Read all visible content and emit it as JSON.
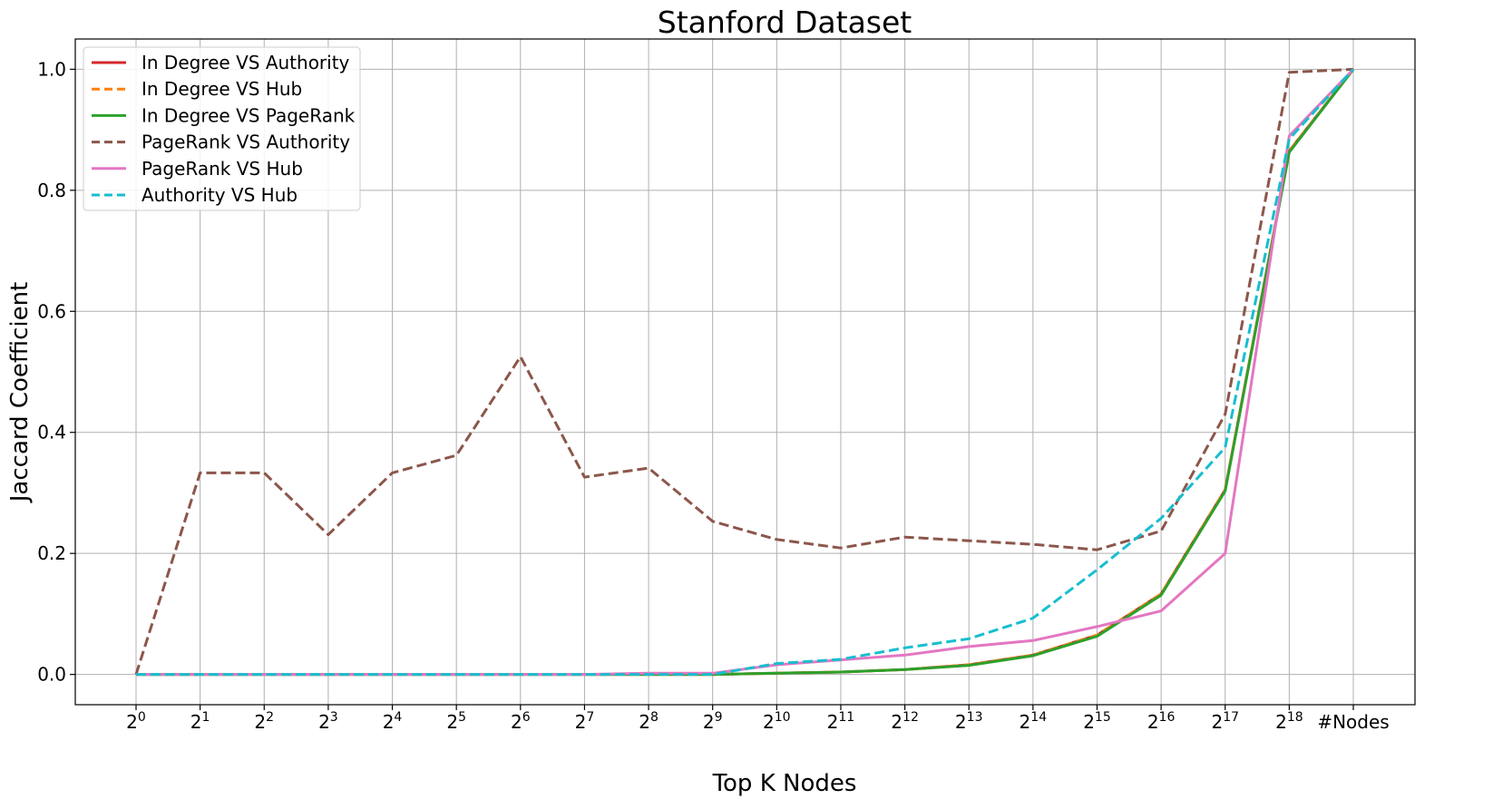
{
  "chart_data": {
    "type": "line",
    "title": "Stanford Dataset",
    "xlabel": "Top K Nodes",
    "ylabel": "Jaccard Coefficient",
    "x_tick_labels": [
      {
        "base": "2",
        "exp": "0"
      },
      {
        "base": "2",
        "exp": "1"
      },
      {
        "base": "2",
        "exp": "2"
      },
      {
        "base": "2",
        "exp": "3"
      },
      {
        "base": "2",
        "exp": "4"
      },
      {
        "base": "2",
        "exp": "5"
      },
      {
        "base": "2",
        "exp": "6"
      },
      {
        "base": "2",
        "exp": "7"
      },
      {
        "base": "2",
        "exp": "8"
      },
      {
        "base": "2",
        "exp": "9"
      },
      {
        "base": "2",
        "exp": "10"
      },
      {
        "base": "2",
        "exp": "11"
      },
      {
        "base": "2",
        "exp": "12"
      },
      {
        "base": "2",
        "exp": "13"
      },
      {
        "base": "2",
        "exp": "14"
      },
      {
        "base": "2",
        "exp": "15"
      },
      {
        "base": "2",
        "exp": "16"
      },
      {
        "base": "2",
        "exp": "17"
      },
      {
        "base": "2",
        "exp": "18"
      },
      {
        "base": "#Nodes",
        "exp": ""
      }
    ],
    "y_ticks": [
      0.0,
      0.2,
      0.4,
      0.6,
      0.8,
      1.0
    ],
    "y_tick_labels": [
      "0.0",
      "0.2",
      "0.4",
      "0.6",
      "0.8",
      "1.0"
    ],
    "ylim": [
      -0.05,
      1.05
    ],
    "grid": true,
    "legend_position": "top-left",
    "series": [
      {
        "name": "In Degree VS Authority",
        "color": "#d62728",
        "dashed": false,
        "values": [
          0,
          0,
          0,
          0,
          0,
          0,
          0,
          0,
          0,
          0,
          0.002,
          0.004,
          0.008,
          0.016,
          0.032,
          0.065,
          0.133,
          0.305,
          0.865,
          1.0
        ]
      },
      {
        "name": "In Degree VS Hub",
        "color": "#ff7f0e",
        "dashed": true,
        "values": [
          0,
          0,
          0,
          0,
          0,
          0,
          0,
          0,
          0,
          0,
          0.002,
          0.004,
          0.008,
          0.016,
          0.032,
          0.065,
          0.133,
          0.305,
          0.865,
          1.0
        ]
      },
      {
        "name": "In Degree VS PageRank",
        "color": "#2ca02c",
        "dashed": false,
        "values": [
          0,
          0,
          0,
          0,
          0,
          0,
          0,
          0,
          0,
          0,
          0.002,
          0.004,
          0.008,
          0.015,
          0.031,
          0.063,
          0.131,
          0.303,
          0.863,
          1.0
        ]
      },
      {
        "name": "PageRank VS Authority",
        "color": "#8c564b",
        "dashed": true,
        "values": [
          0,
          0.333,
          0.333,
          0.231,
          0.333,
          0.362,
          0.525,
          0.326,
          0.341,
          0.253,
          0.223,
          0.209,
          0.227,
          0.221,
          0.215,
          0.206,
          0.237,
          0.43,
          0.995,
          1.0
        ]
      },
      {
        "name": "PageRank VS Hub",
        "color": "#e377c2",
        "dashed": false,
        "values": [
          0,
          0,
          0,
          0,
          0,
          0,
          0,
          0,
          0.002,
          0.002,
          0.016,
          0.024,
          0.032,
          0.046,
          0.056,
          0.079,
          0.105,
          0.2,
          0.89,
          1.0
        ]
      },
      {
        "name": "Authority VS Hub",
        "color": "#17becf",
        "dashed": true,
        "values": [
          0,
          0,
          0,
          0,
          0,
          0,
          0,
          0,
          0,
          0,
          0.018,
          0.025,
          0.044,
          0.059,
          0.093,
          0.173,
          0.258,
          0.375,
          0.885,
          1.0
        ]
      }
    ]
  }
}
